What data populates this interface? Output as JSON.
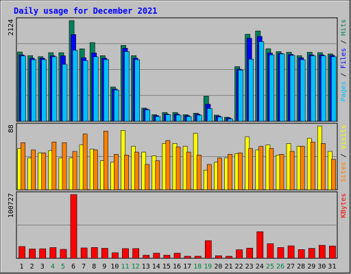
{
  "title": "Daily usage for December 2021",
  "colors": {
    "background": "#c0c0c0",
    "plot_bg": "#c0c0c0",
    "grid": "#808080",
    "title_text": "#0000ff",
    "hits": "#00805c",
    "files": "#0000ff",
    "pages": "#00c0ff",
    "visits": "#ffff00",
    "sites": "#ff8000",
    "kbytes": "#ff0000",
    "weekend_label": "#008040",
    "weekday_label": "#000000"
  },
  "chart_data": [
    {
      "type": "bar",
      "name": "hits-files-pages",
      "categories": [
        "1",
        "2",
        "3",
        "4",
        "5",
        "6",
        "7",
        "8",
        "9",
        "10",
        "11",
        "12",
        "13",
        "14",
        "15",
        "16",
        "17",
        "18",
        "19",
        "20",
        "21",
        "22",
        "23",
        "24",
        "25",
        "26",
        "27",
        "28",
        "29",
        "30",
        "31"
      ],
      "weekend_days": [
        "4",
        "5",
        "11",
        "12",
        "18",
        "19",
        "25",
        "26"
      ],
      "ymax_label": "2124",
      "ymax": 2124,
      "series": [
        {
          "name": "Hits",
          "color": "#00805c",
          "values": [
            1460,
            1384,
            1362,
            1446,
            1446,
            2124,
            1528,
            1660,
            1384,
            723,
            1600,
            1384,
            277,
            138,
            185,
            185,
            138,
            170,
            528,
            130,
            85,
            1153,
            1835,
            1905,
            1530,
            1469,
            1456,
            1384,
            1456,
            1447,
            1419
          ]
        },
        {
          "name": "Files",
          "color": "#0000ff",
          "values": [
            1400,
            1330,
            1330,
            1380,
            1380,
            1830,
            1340,
            1440,
            1330,
            680,
            1540,
            1330,
            260,
            120,
            150,
            150,
            120,
            150,
            360,
            110,
            70,
            1100,
            1750,
            1790,
            1440,
            1430,
            1410,
            1340,
            1400,
            1400,
            1390
          ]
        },
        {
          "name": "Pages",
          "color": "#00c0ff",
          "values": [
            1380,
            1300,
            1300,
            1360,
            1200,
            1500,
            1280,
            1360,
            1300,
            660,
            1470,
            1300,
            240,
            100,
            140,
            130,
            100,
            130,
            270,
            90,
            50,
            1080,
            1310,
            1680,
            1400,
            1420,
            1390,
            1300,
            1380,
            1380,
            1360
          ]
        }
      ]
    },
    {
      "type": "bar",
      "name": "visits-sites",
      "categories": [
        "1",
        "2",
        "3",
        "4",
        "5",
        "6",
        "7",
        "8",
        "9",
        "10",
        "11",
        "12",
        "13",
        "14",
        "15",
        "16",
        "17",
        "18",
        "19",
        "20",
        "21",
        "22",
        "23",
        "24",
        "25",
        "26",
        "27",
        "28",
        "29",
        "30",
        "31"
      ],
      "ymax_label": "88",
      "ymax": 88,
      "series": [
        {
          "name": "Visits",
          "color": "#ffff00",
          "values": [
            57,
            44,
            51,
            54,
            44,
            44,
            62,
            56,
            40,
            38,
            82,
            60,
            52,
            47,
            64,
            64,
            60,
            78,
            27,
            38,
            44,
            50,
            73,
            55,
            62,
            48,
            64,
            60,
            71,
            88,
            53
          ]
        },
        {
          "name": "Sites",
          "color": "#ff8000",
          "values": [
            65,
            55,
            51,
            66,
            65,
            53,
            77,
            55,
            81,
            49,
            48,
            52,
            35,
            40,
            68,
            59,
            52,
            48,
            35,
            44,
            49,
            51,
            57,
            60,
            57,
            49,
            53,
            60,
            66,
            64,
            42
          ]
        }
      ]
    },
    {
      "type": "bar",
      "name": "kbytes",
      "categories": [
        "1",
        "2",
        "3",
        "4",
        "5",
        "6",
        "7",
        "8",
        "9",
        "10",
        "11",
        "12",
        "13",
        "14",
        "15",
        "16",
        "17",
        "18",
        "19",
        "20",
        "21",
        "22",
        "23",
        "24",
        "25",
        "26",
        "27",
        "28",
        "29",
        "30",
        "31"
      ],
      "ymax_label": "100727",
      "ymax": 100727,
      "series": [
        {
          "name": "KBytes",
          "color": "#ff0000",
          "values": [
            18500,
            14600,
            15000,
            16900,
            14100,
            100727,
            16300,
            17000,
            15700,
            8700,
            15300,
            15300,
            4800,
            8000,
            4800,
            8000,
            3200,
            3200,
            27900,
            4000,
            3200,
            13500,
            16000,
            42000,
            23000,
            17000,
            19600,
            13700,
            15600,
            20500,
            19400
          ]
        }
      ]
    }
  ],
  "legend_panels": [
    {
      "labels": [
        {
          "text": "Pages",
          "color": "#00c0ff"
        },
        {
          "text": " / ",
          "color": "#000000"
        },
        {
          "text": "Files",
          "color": "#0000ff"
        },
        {
          "text": " / ",
          "color": "#000000"
        },
        {
          "text": "Hits",
          "color": "#00805c"
        }
      ]
    },
    {
      "labels": [
        {
          "text": "Sites",
          "color": "#ff8000"
        },
        {
          "text": " / ",
          "color": "#000000"
        },
        {
          "text": "Visits",
          "color": "#ffff00"
        }
      ]
    },
    {
      "labels": [
        {
          "text": "KBytes",
          "color": "#ff0000"
        }
      ]
    }
  ]
}
